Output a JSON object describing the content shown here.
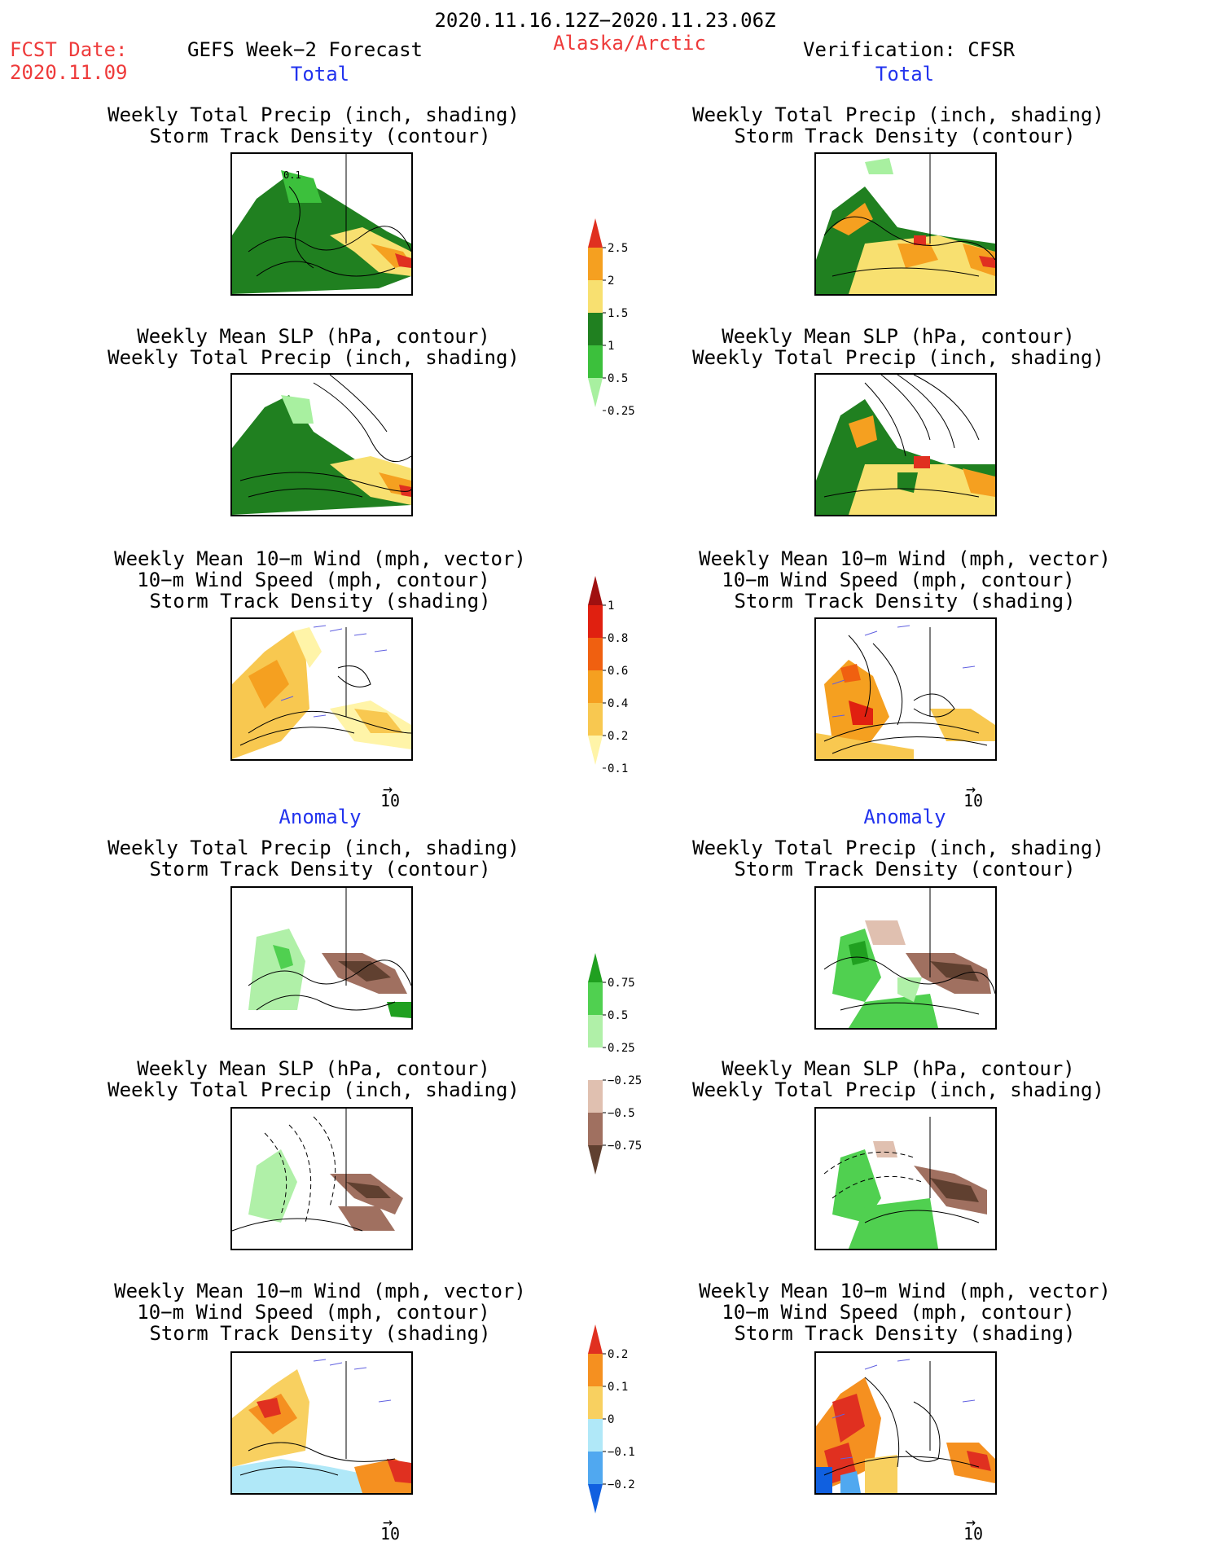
{
  "header": {
    "period": "2020.11.16.12Z−2020.11.23.06Z",
    "fcst_label": "FCST Date:",
    "fcst_date": "2020.11.09",
    "model": "GEFS Week−2 Forecast",
    "region": "Alaska/Arctic",
    "verification": "Verification: CFSR"
  },
  "sections": {
    "total": "Total",
    "anomaly": "Anomaly"
  },
  "titles": {
    "precip_storm": [
      "Weekly Total Precip (inch, shading)",
      "Storm Track Density (contour)"
    ],
    "slp_precip": [
      "Weekly Mean SLP (hPa, contour)",
      "Weekly Total Precip (inch, shading)"
    ],
    "wind_storm": [
      "Weekly Mean 10−m Wind (mph, vector)",
      "10−m Wind Speed (mph, contour)",
      "Storm Track Density (shading)"
    ]
  },
  "panel_annotations": {
    "contour_label_01": "0.1",
    "vector_ref": "10"
  },
  "colorbars": {
    "precip_total": {
      "labels": [
        "2.5",
        "2",
        "1.5",
        "1",
        "0.5",
        "0.25"
      ],
      "colors": [
        "#e03020",
        "#f5a020",
        "#f8e070",
        "#208020",
        "#3cc03c",
        "#a8f0a0"
      ]
    },
    "storm_total": {
      "labels": [
        "1",
        "0.8",
        "0.6",
        "0.4",
        "0.2",
        "0.1"
      ],
      "colors": [
        "#a01010",
        "#e02010",
        "#f06010",
        "#f5a020",
        "#f8c850",
        "#fff4a8"
      ]
    },
    "precip_anom": {
      "labels": [
        "0.75",
        "0.5",
        "0.25",
        "−0.25",
        "−0.5",
        "−0.75"
      ],
      "colors": [
        "#20a020",
        "#50d050",
        "#b0f0a8",
        "#ffffff",
        "#e0c0b0",
        "#a07060",
        "#604030"
      ]
    },
    "storm_anom": {
      "labels": [
        "0.2",
        "0.1",
        "0",
        "−0.1",
        "−0.2"
      ],
      "colors": [
        "#e03020",
        "#f59020",
        "#f8d060",
        "#b0e8f8",
        "#50a8f0",
        "#1060e0"
      ]
    }
  }
}
